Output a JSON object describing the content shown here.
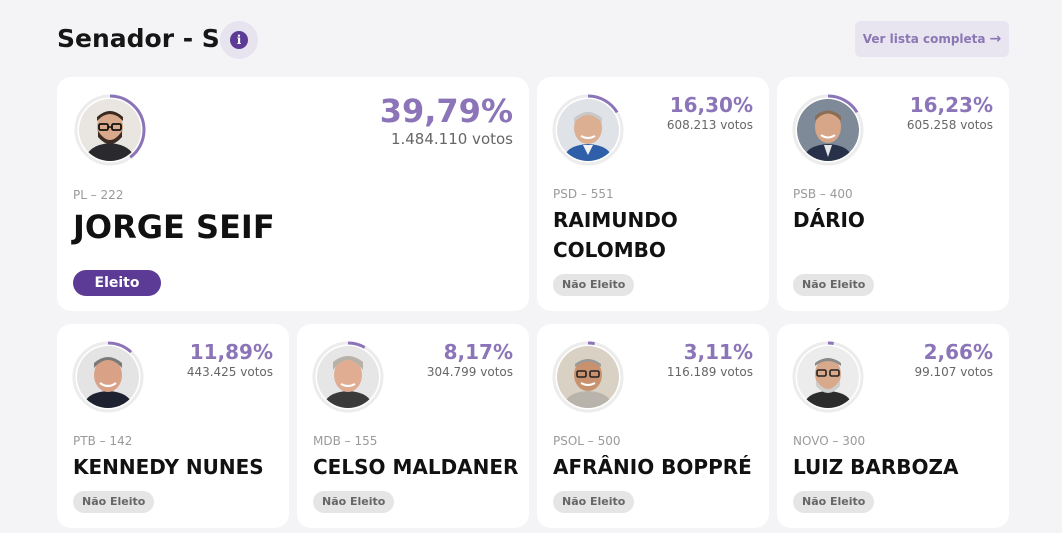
{
  "header": {
    "title": "Senador - SC",
    "info_icon": "i",
    "list_button": "Ver lista completa",
    "list_arrow": "→"
  },
  "colors": {
    "accent": "#8b74b7",
    "elected_badge": "#5b3b96",
    "not_elected_badge": "#e5e5e5"
  },
  "candidates": [
    {
      "party": "PL – 222",
      "name": "JORGE SEIF",
      "percent": "39,79%",
      "share": 0.3979,
      "votes": "1.484.110 votos",
      "status": "Eleito"
    },
    {
      "party": "PSD – 551",
      "name": "RAIMUNDO COLOMBO",
      "percent": "16,30%",
      "share": 0.163,
      "votes": "608.213 votos",
      "status": "Não Eleito"
    },
    {
      "party": "PSB – 400",
      "name": "DÁRIO",
      "percent": "16,23%",
      "share": 0.1623,
      "votes": "605.258 votos",
      "status": "Não Eleito"
    },
    {
      "party": "PTB – 142",
      "name": "KENNEDY NUNES",
      "percent": "11,89%",
      "share": 0.1189,
      "votes": "443.425 votos",
      "status": "Não Eleito"
    },
    {
      "party": "MDB – 155",
      "name": "CELSO MALDANER",
      "percent": "8,17%",
      "share": 0.0817,
      "votes": "304.799 votos",
      "status": "Não Eleito"
    },
    {
      "party": "PSOL – 500",
      "name": "AFRÂNIO BOPPRÉ",
      "percent": "3,11%",
      "share": 0.0311,
      "votes": "116.189 votos",
      "status": "Não Eleito"
    },
    {
      "party": "NOVO – 300",
      "name": "LUIZ BARBOZA",
      "percent": "2,66%",
      "share": 0.0266,
      "votes": "99.107 votos",
      "status": "Não Eleito"
    }
  ]
}
